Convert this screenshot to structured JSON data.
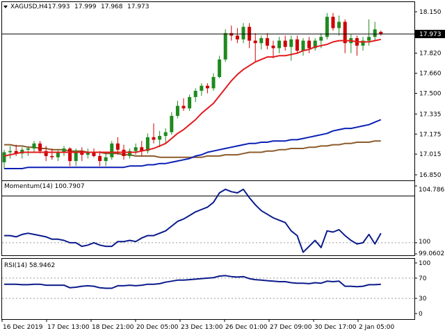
{
  "header": {
    "symbol": "XAGUSD,H4",
    "open": "17.993",
    "high": "17.999",
    "low": "17.968",
    "close": "17.973"
  },
  "colors": {
    "bull_candle": "#1f8a1f",
    "bear_candle": "#cc0000",
    "ma_fast": "#e31a1c",
    "ma_mid": "#0a1fb5",
    "ma_slow": "#8b5a2b",
    "indicator_line": "#0a1a8a",
    "price_label_bg": "#000000"
  },
  "chart_data": [
    {
      "type": "candlestick",
      "title": "XAGUSD,H4  17.993 17.999 17.968 17.973",
      "current_price": "17.973",
      "y_ticks": [
        "18.150",
        "17.820",
        "17.660",
        "17.500",
        "17.335",
        "17.175",
        "17.015",
        "16.850"
      ],
      "ylim": [
        16.85,
        18.15
      ],
      "x_ticks": [
        "16 Dec 2019",
        "17 Dec 13:00",
        "18 Dec 21:00",
        "20 Dec 05:00",
        "23 Dec 13:00",
        "26 Dec 01:00",
        "27 Dec 09:00",
        "30 Dec 17:00",
        "2 Jan 05:00"
      ],
      "candles": [
        [
          16.95,
          17.05,
          16.9,
          17.03
        ],
        [
          17.03,
          17.08,
          16.98,
          17.04
        ],
        [
          17.04,
          17.09,
          17.0,
          17.02
        ],
        [
          17.02,
          17.07,
          16.98,
          17.05
        ],
        [
          17.05,
          17.08,
          17.0,
          17.06
        ],
        [
          17.06,
          17.12,
          17.03,
          17.1
        ],
        [
          17.1,
          17.12,
          17.02,
          17.04
        ],
        [
          17.04,
          17.08,
          16.96,
          17.0
        ],
        [
          17.0,
          17.06,
          16.97,
          16.99
        ],
        [
          16.99,
          17.05,
          16.96,
          17.03
        ],
        [
          17.03,
          17.08,
          17.0,
          17.06
        ],
        [
          17.06,
          17.07,
          16.92,
          16.96
        ],
        [
          16.96,
          17.06,
          16.92,
          17.04
        ],
        [
          17.04,
          17.07,
          16.96,
          17.01
        ],
        [
          17.01,
          17.06,
          16.98,
          17.03
        ],
        [
          17.03,
          17.06,
          16.99,
          17.0
        ],
        [
          17.0,
          17.04,
          16.92,
          16.96
        ],
        [
          16.96,
          17.02,
          16.92,
          16.99
        ],
        [
          16.99,
          17.12,
          16.97,
          17.1
        ],
        [
          17.1,
          17.15,
          17.01,
          17.05
        ],
        [
          17.05,
          17.09,
          16.97,
          17.0
        ],
        [
          17.0,
          17.06,
          16.98,
          17.04
        ],
        [
          17.04,
          17.1,
          17.01,
          17.07
        ],
        [
          17.07,
          17.12,
          17.0,
          17.04
        ],
        [
          17.04,
          17.18,
          17.02,
          17.15
        ],
        [
          17.15,
          17.26,
          17.1,
          17.13
        ],
        [
          17.13,
          17.2,
          17.07,
          17.16
        ],
        [
          17.16,
          17.22,
          17.1,
          17.19
        ],
        [
          17.19,
          17.35,
          17.17,
          17.32
        ],
        [
          17.32,
          17.44,
          17.3,
          17.4
        ],
        [
          17.4,
          17.46,
          17.36,
          17.38
        ],
        [
          17.38,
          17.49,
          17.36,
          17.47
        ],
        [
          17.47,
          17.54,
          17.43,
          17.52
        ],
        [
          17.52,
          17.58,
          17.48,
          17.56
        ],
        [
          17.56,
          17.58,
          17.5,
          17.54
        ],
        [
          17.54,
          17.66,
          17.52,
          17.63
        ],
        [
          17.63,
          17.8,
          17.62,
          17.77
        ],
        [
          17.77,
          18.01,
          17.75,
          17.98
        ],
        [
          17.98,
          18.04,
          17.92,
          17.96
        ],
        [
          17.96,
          18.02,
          17.9,
          17.93
        ],
        [
          17.93,
          18.06,
          17.9,
          18.03
        ],
        [
          18.03,
          18.06,
          17.86,
          17.92
        ],
        [
          17.92,
          17.98,
          17.75,
          17.9
        ],
        [
          17.9,
          17.96,
          17.85,
          17.94
        ],
        [
          17.94,
          17.98,
          17.85,
          17.88
        ],
        [
          17.88,
          17.92,
          17.78,
          17.86
        ],
        [
          17.86,
          17.95,
          17.82,
          17.92
        ],
        [
          17.92,
          17.96,
          17.84,
          17.87
        ],
        [
          17.87,
          17.96,
          17.76,
          17.93
        ],
        [
          17.93,
          17.96,
          17.82,
          17.84
        ],
        [
          17.84,
          17.94,
          17.8,
          17.92
        ],
        [
          17.92,
          17.95,
          17.82,
          17.86
        ],
        [
          17.86,
          17.94,
          17.84,
          17.92
        ],
        [
          17.92,
          17.98,
          17.86,
          17.95
        ],
        [
          17.95,
          18.14,
          17.93,
          18.11
        ],
        [
          18.11,
          18.14,
          18.0,
          18.02
        ],
        [
          18.02,
          18.12,
          17.96,
          18.07
        ],
        [
          18.07,
          18.09,
          17.82,
          17.9
        ],
        [
          17.9,
          17.97,
          17.82,
          17.94
        ],
        [
          17.94,
          17.96,
          17.8,
          17.88
        ],
        [
          17.88,
          17.95,
          17.84,
          17.92
        ],
        [
          17.92,
          18.09,
          17.88,
          17.95
        ],
        [
          17.95,
          18.07,
          17.92,
          18.01
        ],
        [
          17.99,
          18.0,
          17.96,
          17.97
        ]
      ],
      "ma_fast": [
        17.0,
        17.01,
        17.02,
        17.03,
        17.03,
        17.03,
        17.03,
        17.03,
        17.03,
        17.03,
        17.03,
        17.03,
        17.03,
        17.03,
        17.03,
        17.03,
        17.03,
        17.03,
        17.03,
        17.03,
        17.03,
        17.03,
        17.03,
        17.04,
        17.05,
        17.06,
        17.08,
        17.1,
        17.14,
        17.18,
        17.21,
        17.25,
        17.29,
        17.34,
        17.38,
        17.42,
        17.48,
        17.54,
        17.6,
        17.65,
        17.69,
        17.72,
        17.75,
        17.77,
        17.79,
        17.79,
        17.8,
        17.8,
        17.81,
        17.82,
        17.84,
        17.85,
        17.87,
        17.88,
        17.89,
        17.91,
        17.92,
        17.92,
        17.92,
        17.91,
        17.91,
        17.91,
        17.92,
        17.93
      ],
      "ma_mid": [
        16.9,
        16.9,
        16.9,
        16.9,
        16.91,
        16.91,
        16.91,
        16.91,
        16.91,
        16.91,
        16.91,
        16.91,
        16.91,
        16.91,
        16.91,
        16.91,
        16.91,
        16.91,
        16.91,
        16.91,
        16.91,
        16.92,
        16.92,
        16.92,
        16.93,
        16.93,
        16.94,
        16.94,
        16.95,
        16.96,
        16.97,
        16.98,
        17.0,
        17.01,
        17.03,
        17.04,
        17.05,
        17.06,
        17.07,
        17.08,
        17.09,
        17.1,
        17.1,
        17.11,
        17.11,
        17.12,
        17.12,
        17.12,
        17.13,
        17.13,
        17.14,
        17.15,
        17.16,
        17.17,
        17.18,
        17.2,
        17.21,
        17.22,
        17.22,
        17.23,
        17.24,
        17.25,
        17.27,
        17.29
      ],
      "ma_slow": [
        17.09,
        17.09,
        17.08,
        17.08,
        17.07,
        17.07,
        17.06,
        17.06,
        17.05,
        17.05,
        17.05,
        17.04,
        17.04,
        17.04,
        17.03,
        17.03,
        17.03,
        17.02,
        17.02,
        17.02,
        17.01,
        17.01,
        17.0,
        17.0,
        17.0,
        17.0,
        16.99,
        16.99,
        16.99,
        16.99,
        16.99,
        16.99,
        16.99,
        16.99,
        17.0,
        17.0,
        17.0,
        17.01,
        17.01,
        17.01,
        17.02,
        17.03,
        17.03,
        17.03,
        17.04,
        17.04,
        17.05,
        17.05,
        17.06,
        17.06,
        17.06,
        17.07,
        17.07,
        17.08,
        17.08,
        17.09,
        17.09,
        17.1,
        17.1,
        17.11,
        17.11,
        17.11,
        17.12,
        17.12
      ]
    },
    {
      "type": "line",
      "title": "Momentum(14) 100.7907",
      "y_ticks": [
        "104.7865",
        "100",
        "99.0602"
      ],
      "ylim": [
        99.0602,
        104.7865
      ],
      "reference_line": 100,
      "values": [
        100.6,
        100.6,
        100.5,
        100.7,
        100.8,
        100.7,
        100.6,
        100.5,
        100.3,
        100.3,
        100.2,
        100.0,
        100.0,
        99.7,
        99.8,
        100.0,
        99.8,
        99.7,
        99.7,
        100.1,
        100.1,
        100.2,
        100.1,
        100.4,
        100.6,
        100.6,
        100.8,
        101.0,
        101.4,
        101.8,
        102.0,
        102.3,
        102.6,
        102.8,
        103.0,
        103.4,
        104.2,
        104.5,
        104.3,
        104.2,
        104.5,
        103.8,
        103.2,
        102.7,
        102.4,
        102.1,
        101.9,
        101.7,
        101.0,
        100.6,
        99.2,
        99.7,
        100.2,
        99.6,
        101.0,
        100.9,
        101.1,
        100.6,
        100.2,
        99.9,
        100.0,
        100.7,
        99.9,
        100.8
      ]
    },
    {
      "type": "line",
      "title": "RSI(14) 58.9462",
      "y_ticks": [
        "100",
        "70",
        "30",
        "0"
      ],
      "ylim": [
        0,
        100
      ],
      "reference_lines": [
        70,
        30
      ],
      "values": [
        58,
        58,
        58,
        57,
        57,
        58,
        58,
        56,
        56,
        56,
        56,
        51,
        52,
        54,
        55,
        54,
        51,
        50,
        50,
        55,
        55,
        56,
        55,
        56,
        58,
        58,
        59,
        62,
        64,
        66,
        66,
        67,
        68,
        69,
        70,
        71,
        74,
        75,
        73,
        72,
        73,
        69,
        67,
        66,
        65,
        64,
        63,
        63,
        61,
        60,
        60,
        59,
        61,
        60,
        64,
        63,
        64,
        54,
        54,
        53,
        54,
        57,
        57,
        58
      ]
    }
  ]
}
